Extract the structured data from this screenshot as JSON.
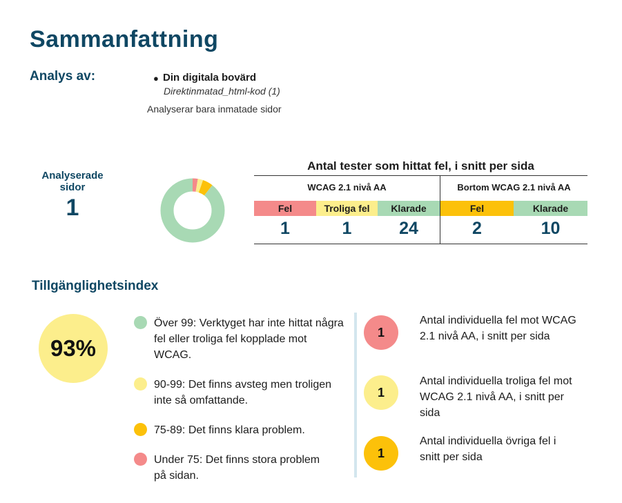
{
  "title": "Sammanfattning",
  "analysis": {
    "label": "Analys av:",
    "source_name": "Din digitala bovärd",
    "source_sub": "Direktinmatad_html-kod (1)",
    "note": "Analyserar bara inmatade sidor"
  },
  "pages": {
    "label_line1": "Analyserade",
    "label_line2": "sidor",
    "value": "1"
  },
  "tests": {
    "title": "Antal tester som hittat fel, i snitt per sida",
    "wcag": {
      "header": "WCAG 2.1 nivå AA",
      "columns": [
        {
          "label": "Fel",
          "value": "1"
        },
        {
          "label": "Troliga fel",
          "value": "1"
        },
        {
          "label": "Klarade",
          "value": "24"
        }
      ]
    },
    "beyond": {
      "header": "Bortom WCAG 2.1 nivå AA",
      "columns": [
        {
          "label": "Fel",
          "value": "2"
        },
        {
          "label": "Klarade",
          "value": "10"
        }
      ]
    }
  },
  "index": {
    "title": "Tillgänglighetsindex",
    "value": "93%",
    "legend": [
      {
        "text": "Över 99: Verktyget har inte hittat några fel eller troliga fel kopplade mot WCAG.",
        "color": "#a8d9b4"
      },
      {
        "text": "90-99: Det finns avsteg men troligen inte så omfattande.",
        "color": "#fcee8c"
      },
      {
        "text": "75-89: Det finns klara problem.",
        "color": "#fcc10a"
      },
      {
        "text": "Under 75: Det finns stora problem på sidan.",
        "color": "#f48a8a"
      }
    ]
  },
  "counts": [
    {
      "value": "1",
      "text": "Antal individuella fel mot WCAG 2.1 nivå AA, i snitt per sida",
      "color": "#f48a8a"
    },
    {
      "value": "1",
      "text": "Antal individuella troliga fel mot WCAG 2.1 nivå AA, i snitt per sida",
      "color": "#fcee8c"
    },
    {
      "value": "1",
      "text": "Antal individuella övriga fel i snitt per sida",
      "color": "#fcc10a"
    }
  ],
  "colors": {
    "brand": "#0f4763",
    "error": "#f48a8a",
    "likely": "#fcee8c",
    "passed": "#a8d9b4",
    "other": "#fcc10a",
    "divider": "#d3e6ee"
  },
  "donut": {
    "segments": [
      {
        "name": "Fel",
        "value": 1,
        "color": "#f48a8a"
      },
      {
        "name": "Troliga fel",
        "value": 1,
        "color": "#fcee8c"
      },
      {
        "name": "Bortom fel",
        "value": 2,
        "color": "#fcc10a"
      },
      {
        "name": "Klarade",
        "value": 34,
        "color": "#a8d9b4"
      }
    ]
  }
}
